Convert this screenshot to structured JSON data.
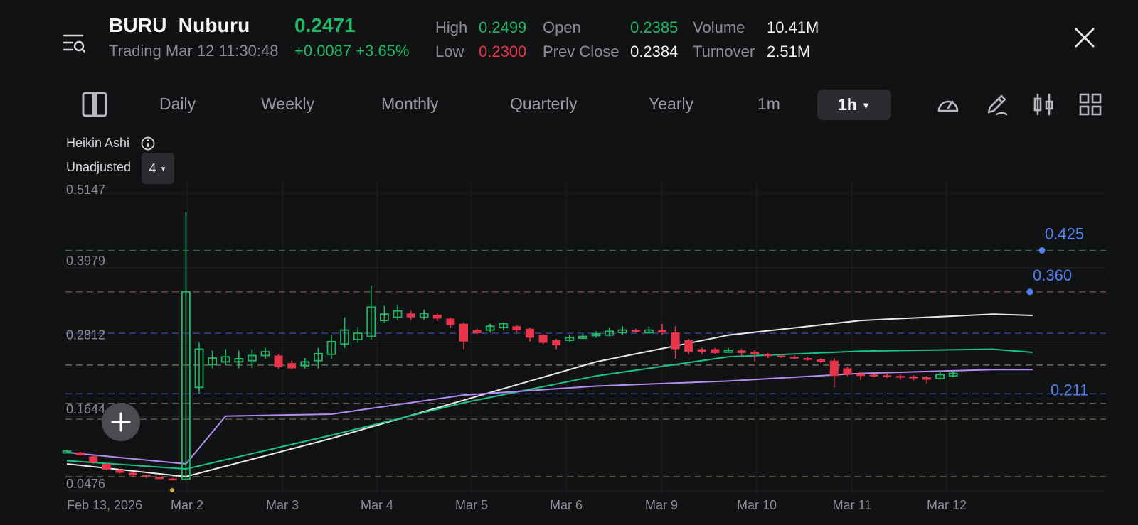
{
  "header": {
    "symbol": "BURU",
    "name": "Nuburu",
    "status_time": "Trading Mar 12 11:30:48",
    "price": "0.2471",
    "change": "+0.0087 +3.65%",
    "stats": [
      {
        "label": "High",
        "value": "0.2499",
        "tone": "up"
      },
      {
        "label": "Low",
        "value": "0.2300",
        "tone": "down"
      },
      {
        "label": "Open",
        "value": "0.2385",
        "tone": "up"
      },
      {
        "label": "Prev Close",
        "value": "0.2384",
        "tone": "neutral"
      },
      {
        "label": "Volume",
        "value": "10.41M",
        "tone": "neutral"
      },
      {
        "label": "Turnover",
        "value": "2.51M",
        "tone": "neutral"
      }
    ]
  },
  "toolbar": {
    "tabs": [
      "Daily",
      "Weekly",
      "Monthly",
      "Quarterly",
      "Yearly",
      "1m"
    ],
    "active": "1h",
    "icons": [
      "sidebar-toggle-icon",
      "gauge-icon",
      "draw-pen-icon",
      "candle-settings-icon",
      "layout-grid-icon"
    ]
  },
  "chart_meta": {
    "type_label": "Heikin Ashi",
    "adjust_label": "Unadjusted",
    "period_value": "4"
  },
  "colors": {
    "up": "#1fb863",
    "down": "#e8354a",
    "ma_white": "#e9e9eb",
    "ma_green": "#19c38a",
    "ma_purple": "#b48cf2",
    "annotation": "#4f7ff0"
  },
  "chart_data": {
    "type": "candlestick",
    "ylim": [
      0.0476,
      0.5147
    ],
    "y_ticks": [
      "0.5147",
      "0.3979",
      "0.2812",
      "0.1644",
      "0.0476"
    ],
    "x_labels": [
      "Feb 13, 2026",
      "Mar 2",
      "Mar 3",
      "Mar 4",
      "Mar 5",
      "Mar 6",
      "Mar 9",
      "Mar 10",
      "Mar 11",
      "Mar 12"
    ],
    "annotations": [
      {
        "label": "0.425",
        "value": 0.425
      },
      {
        "label": "0.360",
        "value": 0.36
      },
      {
        "label": "0.211",
        "value": 0.211
      }
    ],
    "candles": [
      [
        0.11,
        0.11,
        0.112,
        0.108
      ],
      [
        0.108,
        0.104,
        0.109,
        0.103
      ],
      [
        0.102,
        0.092,
        0.103,
        0.09
      ],
      [
        0.09,
        0.081,
        0.091,
        0.08
      ],
      [
        0.081,
        0.076,
        0.082,
        0.075
      ],
      [
        0.076,
        0.072,
        0.077,
        0.071
      ],
      [
        0.072,
        0.069,
        0.073,
        0.068
      ],
      [
        0.069,
        0.067,
        0.07,
        0.066
      ],
      [
        0.067,
        0.066,
        0.068,
        0.065
      ],
      [
        0.066,
        0.36,
        0.485,
        0.064
      ],
      [
        0.21,
        0.27,
        0.28,
        0.2
      ],
      [
        0.246,
        0.256,
        0.268,
        0.24
      ],
      [
        0.25,
        0.258,
        0.27,
        0.245
      ],
      [
        0.25,
        0.255,
        0.268,
        0.24
      ],
      [
        0.252,
        0.26,
        0.27,
        0.24
      ],
      [
        0.26,
        0.266,
        0.272,
        0.255
      ],
      [
        0.26,
        0.242,
        0.262,
        0.24
      ],
      [
        0.248,
        0.24,
        0.252,
        0.238
      ],
      [
        0.244,
        0.25,
        0.256,
        0.24
      ],
      [
        0.252,
        0.263,
        0.272,
        0.24
      ],
      [
        0.262,
        0.282,
        0.292,
        0.255
      ],
      [
        0.278,
        0.3,
        0.32,
        0.272
      ],
      [
        0.285,
        0.295,
        0.305,
        0.28
      ],
      [
        0.29,
        0.336,
        0.37,
        0.285
      ],
      [
        0.315,
        0.325,
        0.338,
        0.312
      ],
      [
        0.32,
        0.33,
        0.34,
        0.315
      ],
      [
        0.326,
        0.32,
        0.33,
        0.316
      ],
      [
        0.32,
        0.326,
        0.332,
        0.316
      ],
      [
        0.324,
        0.318,
        0.326,
        0.314
      ],
      [
        0.318,
        0.308,
        0.32,
        0.304
      ],
      [
        0.31,
        0.282,
        0.312,
        0.27
      ],
      [
        0.3,
        0.295,
        0.302,
        0.292
      ],
      [
        0.3,
        0.306,
        0.31,
        0.296
      ],
      [
        0.304,
        0.31,
        0.312,
        0.3
      ],
      [
        0.306,
        0.3,
        0.308,
        0.296
      ],
      [
        0.302,
        0.288,
        0.304,
        0.282
      ],
      [
        0.292,
        0.28,
        0.294,
        0.278
      ],
      [
        0.284,
        0.276,
        0.286,
        0.27
      ],
      [
        0.284,
        0.288,
        0.292,
        0.282
      ],
      [
        0.288,
        0.29,
        0.294,
        0.286
      ],
      [
        0.292,
        0.294,
        0.298,
        0.288
      ],
      [
        0.292,
        0.298,
        0.304,
        0.29
      ],
      [
        0.296,
        0.3,
        0.306,
        0.292
      ],
      [
        0.3,
        0.298,
        0.302,
        0.296
      ],
      [
        0.296,
        0.3,
        0.306,
        0.294
      ],
      [
        0.3,
        0.296,
        0.31,
        0.292
      ],
      [
        0.296,
        0.27,
        0.306,
        0.255
      ],
      [
        0.284,
        0.266,
        0.286,
        0.262
      ],
      [
        0.27,
        0.266,
        0.272,
        0.262
      ],
      [
        0.27,
        0.264,
        0.272,
        0.262
      ],
      [
        0.268,
        0.268,
        0.272,
        0.266
      ],
      [
        0.268,
        0.264,
        0.27,
        0.26
      ],
      [
        0.266,
        0.262,
        0.268,
        0.25
      ],
      [
        0.262,
        0.26,
        0.264,
        0.256
      ],
      [
        0.26,
        0.258,
        0.262,
        0.256
      ],
      [
        0.258,
        0.256,
        0.26,
        0.254
      ],
      [
        0.256,
        0.254,
        0.258,
        0.252
      ],
      [
        0.254,
        0.25,
        0.256,
        0.248
      ],
      [
        0.252,
        0.228,
        0.256,
        0.21
      ],
      [
        0.24,
        0.23,
        0.242,
        0.228
      ],
      [
        0.232,
        0.228,
        0.234,
        0.222
      ],
      [
        0.23,
        0.228,
        0.232,
        0.226
      ],
      [
        0.229,
        0.227,
        0.231,
        0.225
      ],
      [
        0.228,
        0.226,
        0.23,
        0.222
      ],
      [
        0.227,
        0.225,
        0.229,
        0.221
      ],
      [
        0.226,
        0.222,
        0.228,
        0.216
      ],
      [
        0.224,
        0.23,
        0.236,
        0.222
      ],
      [
        0.228,
        0.232,
        0.236,
        0.226
      ]
    ],
    "ma_lines": [
      {
        "color": "ma_white",
        "points": [
          [
            0,
            0.09
          ],
          [
            9,
            0.07
          ],
          [
            20,
            0.13
          ],
          [
            30,
            0.19
          ],
          [
            40,
            0.25
          ],
          [
            50,
            0.292
          ],
          [
            60,
            0.315
          ],
          [
            70,
            0.325
          ],
          [
            73,
            0.323
          ]
        ]
      },
      {
        "color": "ma_green",
        "points": [
          [
            0,
            0.095
          ],
          [
            9,
            0.082
          ],
          [
            20,
            0.135
          ],
          [
            30,
            0.186
          ],
          [
            40,
            0.228
          ],
          [
            50,
            0.258
          ],
          [
            60,
            0.267
          ],
          [
            70,
            0.27
          ],
          [
            73,
            0.265
          ]
        ]
      },
      {
        "color": "ma_purple",
        "points": [
          [
            0,
            0.108
          ],
          [
            9,
            0.09
          ],
          [
            12,
            0.165
          ],
          [
            20,
            0.168
          ],
          [
            30,
            0.198
          ],
          [
            40,
            0.212
          ],
          [
            50,
            0.22
          ],
          [
            60,
            0.232
          ],
          [
            70,
            0.238
          ],
          [
            73,
            0.238
          ]
        ]
      }
    ],
    "ref_lines": [
      {
        "value": 0.425,
        "color": "#2f6b45"
      },
      {
        "value": 0.36,
        "color": "#7a3d40"
      },
      {
        "value": 0.295,
        "color": "#3d3f8a"
      },
      {
        "value": 0.245,
        "color": "#6c6d57"
      },
      {
        "value": 0.2,
        "color": "#3d3f8a"
      },
      {
        "value": 0.185,
        "color": "#58595c"
      },
      {
        "value": 0.16,
        "color": "#5c5d47"
      },
      {
        "value": 0.07,
        "color": "#5c5d37"
      }
    ]
  }
}
